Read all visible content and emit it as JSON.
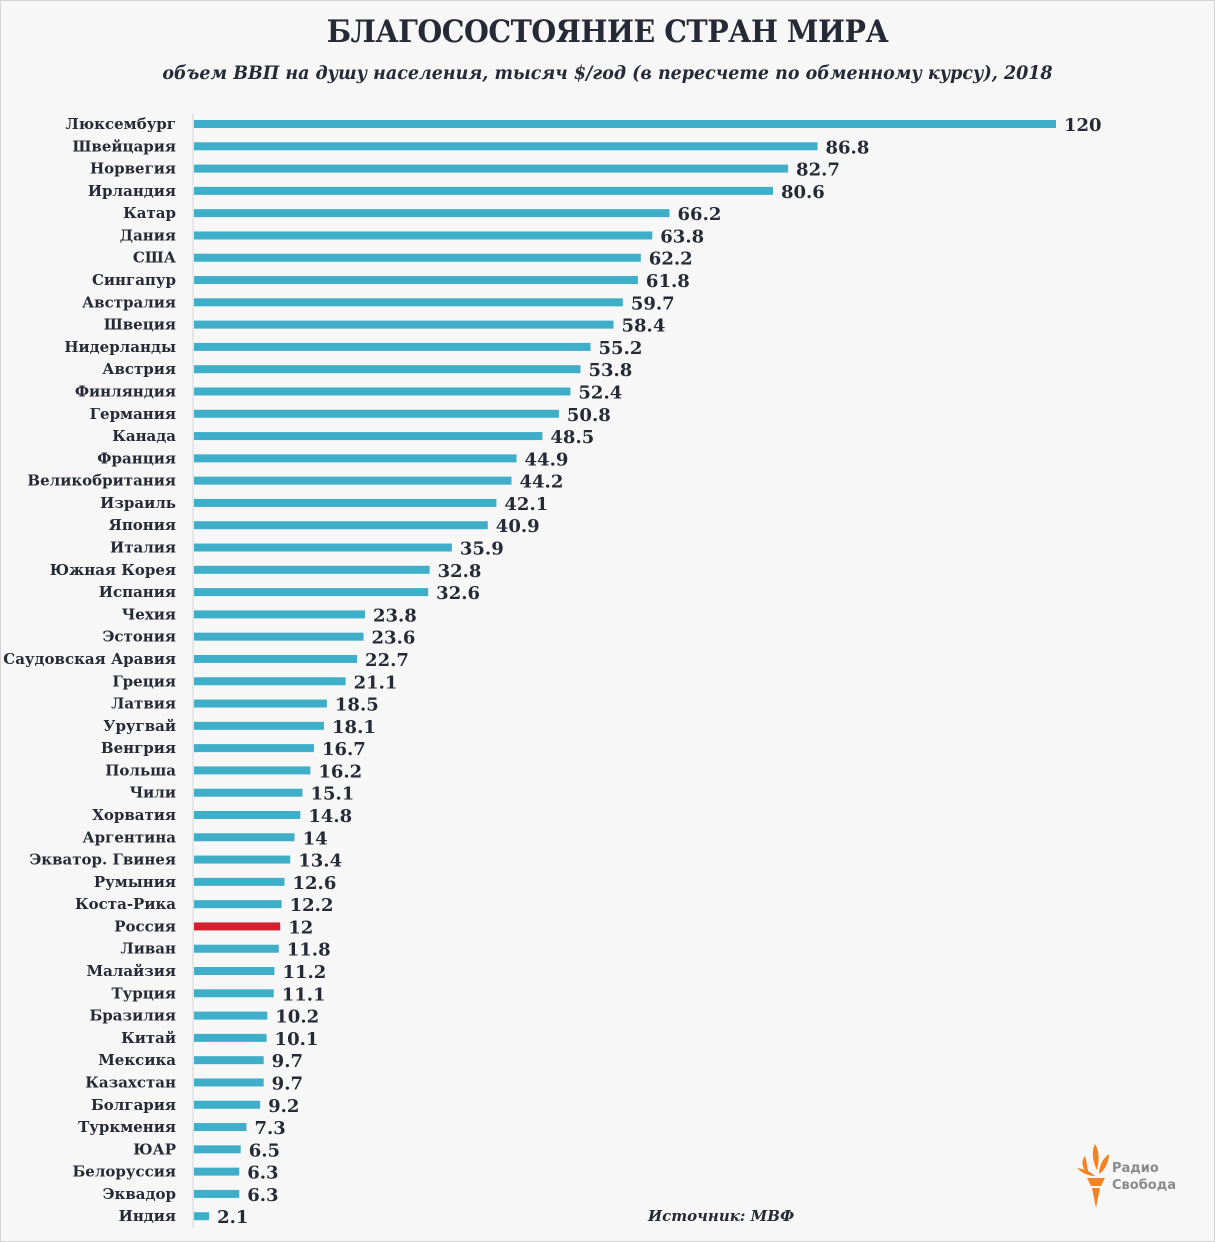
{
  "chart_data": {
    "type": "bar",
    "orientation": "horizontal",
    "title": "БЛАГОСОСТОЯНИЕ СТРАН МИРА",
    "subtitle": "объем ВВП на душу населения, тысяч $/год (в пересчете по обменному курсу), 2018",
    "xlabel": "",
    "ylabel": "",
    "xlim": [
      0,
      120
    ],
    "grid": false,
    "legend": null,
    "highlight_category": "Россия",
    "colors": {
      "bar": "#3fafc9",
      "highlight": "#d0212f",
      "text": "#252a36"
    },
    "categories": [
      "Люксембург",
      "Швейцария",
      "Норвегия",
      "Ирландия",
      "Катар",
      "Дания",
      "США",
      "Сингапур",
      "Австралия",
      "Швеция",
      "Нидерланды",
      "Австрия",
      "Финляндия",
      "Германия",
      "Канада",
      "Франция",
      "Великобритания",
      "Израиль",
      "Япония",
      "Италия",
      "Южная Корея",
      "Испания",
      "Чехия",
      "Эстония",
      "Саудовская Аравия",
      "Греция",
      "Латвия",
      "Уругвай",
      "Венгрия",
      "Польша",
      "Чили",
      "Хорватия",
      "Аргентина",
      "Экватор. Гвинея",
      "Румыния",
      "Коста-Рика",
      "Россия",
      "Ливан",
      "Малайзия",
      "Турция",
      "Бразилия",
      "Китай",
      "Мексика",
      "Казахстан",
      "Болгария",
      "Туркмения",
      "ЮАР",
      "Белоруссия",
      "Эквадор",
      "Индия"
    ],
    "values": [
      120,
      86.8,
      82.7,
      80.6,
      66.2,
      63.8,
      62.2,
      61.8,
      59.7,
      58.4,
      55.2,
      53.8,
      52.4,
      50.8,
      48.5,
      44.9,
      44.2,
      42.1,
      40.9,
      35.9,
      32.8,
      32.6,
      23.8,
      23.6,
      22.7,
      21.1,
      18.5,
      18.1,
      16.7,
      16.2,
      15.1,
      14.8,
      14,
      13.4,
      12.6,
      12.2,
      12,
      11.8,
      11.2,
      11.1,
      10.2,
      10.1,
      9.7,
      9.7,
      9.2,
      7.3,
      6.5,
      6.3,
      6.3,
      2.1
    ],
    "value_labels": [
      "120",
      "86.8",
      "82.7",
      "80.6",
      "66.2",
      "63.8",
      "62.2",
      "61.8",
      "59.7",
      "58.4",
      "55.2",
      "53.8",
      "52.4",
      "50.8",
      "48.5",
      "44.9",
      "44.2",
      "42.1",
      "40.9",
      "35.9",
      "32.8",
      "32.6",
      "23.8",
      "23.6",
      "22.7",
      "21.1",
      "18.5",
      "18.1",
      "16.7",
      "16.2",
      "15.1",
      "14.8",
      "14",
      "13.4",
      "12.6",
      "12.2",
      "12",
      "11.8",
      "11.2",
      "11.1",
      "10.2",
      "10.1",
      "9.7",
      "9.7",
      "9.2",
      "7.3",
      "6.5",
      "6.3",
      "6.3",
      "2.1"
    ]
  },
  "header": {
    "title": "БЛАГОСОСТОЯНИЕ СТРАН МИРА",
    "subtitle": "объем ВВП на душу населения, тысяч $/год (в пересчете по обменному курсу), 2018"
  },
  "footer": {
    "source": "Источник: МВФ",
    "logo": {
      "icon": "torch-icon",
      "line1": "Радио",
      "line2": "Свобода",
      "icon_color": "#f58220"
    }
  }
}
